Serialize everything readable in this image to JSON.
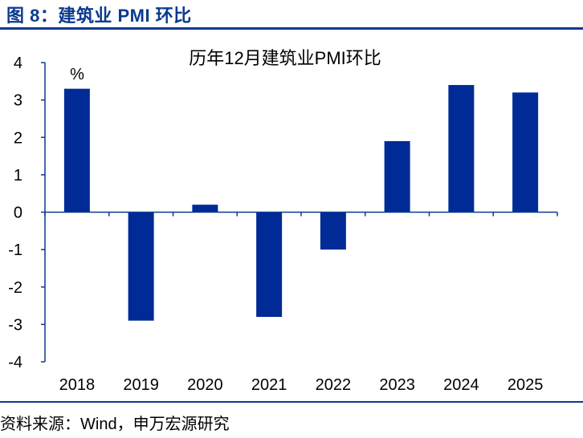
{
  "figure": {
    "title": "图 8：建筑业 PMI 环比",
    "source": "资料来源：Wind，申万宏源研究"
  },
  "colors": {
    "bar": "#002b96",
    "axis": "#0a3a8f",
    "text": "#000000"
  },
  "chart_data": {
    "type": "bar",
    "title": "历年12月建筑业PMI环比",
    "unit_label": "%",
    "categories": [
      "2018",
      "2019",
      "2020",
      "2021",
      "2022",
      "2023",
      "2024",
      "2025"
    ],
    "values": [
      3.3,
      -2.9,
      0.2,
      -2.8,
      -1.0,
      1.9,
      3.4,
      3.2
    ],
    "ylim": [
      -4,
      4
    ],
    "yticks": [
      4,
      3,
      2,
      1,
      0,
      -1,
      -2,
      -3,
      -4
    ],
    "xlabel": "",
    "ylabel": ""
  }
}
